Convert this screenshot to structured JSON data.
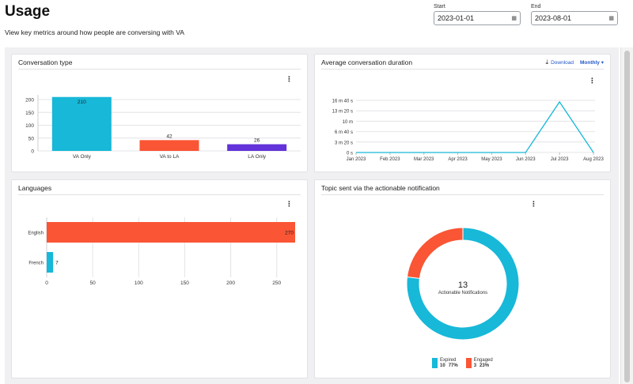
{
  "header": {
    "title": "Usage",
    "subtitle": "View key metrics around how people are conversing with VA"
  },
  "date_range": {
    "start_label": "Start",
    "start_value": "2023-01-01",
    "end_label": "End",
    "end_value": "2023-08-01"
  },
  "cards": {
    "conversation_type": {
      "title": "Conversation type"
    },
    "avg_duration": {
      "title": "Average conversation duration",
      "download_label": "Download",
      "period_label": "Monthly"
    },
    "languages": {
      "title": "Languages"
    },
    "topic": {
      "title": "Topic sent via the actionable notification"
    }
  },
  "colors": {
    "cyan": "#17b8d8",
    "orange": "#fa5534",
    "purple": "#6233d8",
    "accent": "#2458c9"
  },
  "chart_data": [
    {
      "id": "conversation_type",
      "type": "bar",
      "categories": [
        "VA Only",
        "VA to LA",
        "LA Only"
      ],
      "values": [
        210,
        42,
        26
      ],
      "colors": [
        "#17b8d8",
        "#fa5534",
        "#6233d8"
      ],
      "ylim": [
        0,
        200
      ],
      "yticks": [
        0,
        50,
        100,
        150,
        200
      ],
      "grid": true
    },
    {
      "id": "avg_duration",
      "type": "line",
      "x": [
        "Jan 2023",
        "Feb 2023",
        "Mar 2023",
        "Apr 2023",
        "May 2023",
        "Jun 2023",
        "Jul 2023",
        "Aug 2023"
      ],
      "y_seconds": [
        0,
        0,
        0,
        0,
        0,
        0,
        970,
        0
      ],
      "yticks_seconds": [
        0,
        200,
        400,
        600,
        800,
        1000
      ],
      "yticks_labels": [
        "0 s",
        "3 m 20 s",
        "6 m 40 s",
        "10 m",
        "13 m 20 s",
        "16 m 40 s"
      ],
      "color": "#17b8d8",
      "grid": true
    },
    {
      "id": "languages",
      "type": "bar",
      "orientation": "horizontal",
      "categories": [
        "English",
        "French"
      ],
      "values": [
        270,
        7
      ],
      "colors": [
        "#fa5534",
        "#17b8d8"
      ],
      "xticks": [
        0,
        50,
        100,
        150,
        200,
        250
      ],
      "xlim": [
        0,
        270
      ],
      "grid": true
    },
    {
      "id": "topic",
      "type": "pie",
      "donut": true,
      "center_value": "13",
      "center_label": "Actionable Notifications",
      "slices": [
        {
          "name": "Expired",
          "count": "10",
          "percent": "77%",
          "value": 10,
          "color": "#17b8d8"
        },
        {
          "name": "Engaged",
          "count": "3",
          "percent": "23%",
          "value": 3,
          "color": "#fa5534"
        }
      ]
    }
  ]
}
